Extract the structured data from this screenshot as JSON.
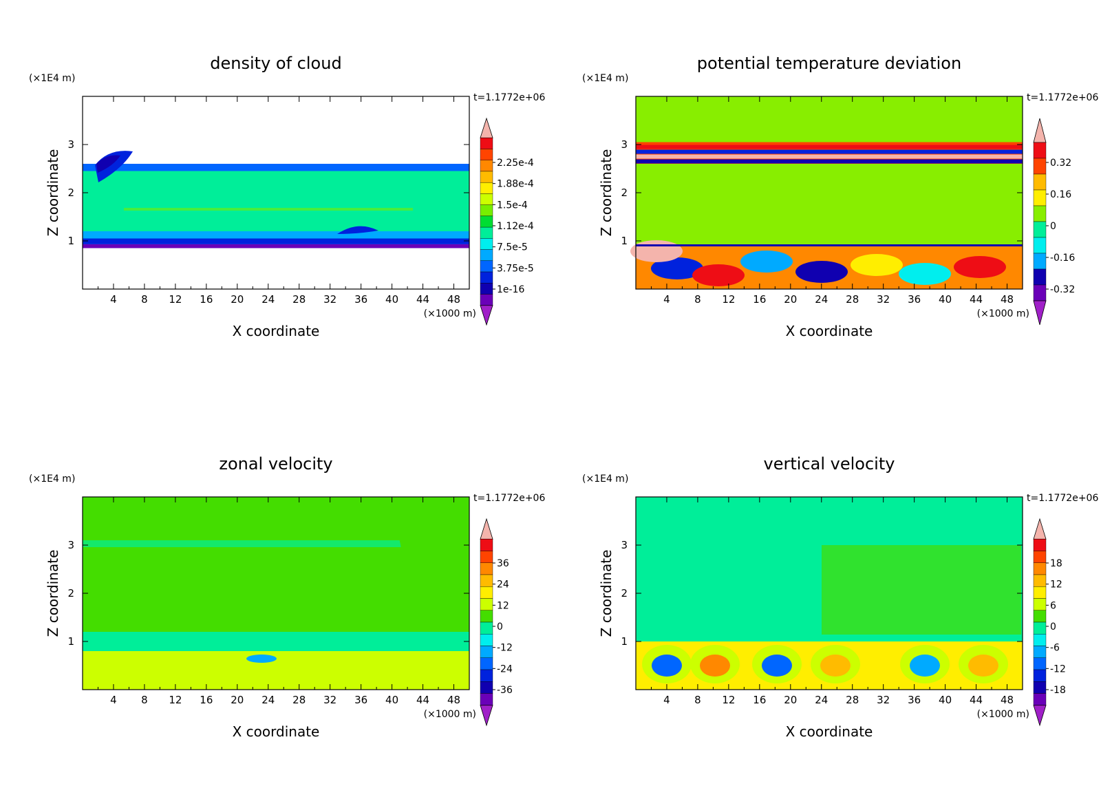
{
  "figure": {
    "time_label": "t=1.1772e+06",
    "y_unit": "(×1E4 m)",
    "x_unit": "(×1000 m)",
    "x_label": "X coordinate",
    "y_label": "Z coordinate",
    "x_ticks": [
      4,
      8,
      12,
      16,
      20,
      24,
      28,
      32,
      36,
      40,
      44,
      48
    ],
    "y_ticks": [
      1,
      2,
      3
    ]
  },
  "chart_data": [
    {
      "type": "heatmap",
      "title": "density of cloud",
      "xlabel": "X coordinate",
      "ylabel": "Z coordinate",
      "xunit": "(×1000 m)",
      "yunit": "(×1E4 m)",
      "xlim": [
        0,
        50
      ],
      "ylim": [
        0,
        4
      ],
      "annotation": "t=1.1772e+06",
      "colorbar": {
        "labels": [
          "2.25e-4",
          "1.88e-4",
          "1.5e-4",
          "1.12e-4",
          "7.5e-5",
          "3.75e-5",
          "1e-16"
        ],
        "colors": [
          "#f4b4ac",
          "#ee0d15",
          "#ff4400",
          "#ff8800",
          "#ffbb00",
          "#ffee00",
          "#ccff00",
          "#77ee00",
          "#00dd33",
          "#00ee99",
          "#00eeee",
          "#00aaff",
          "#0066ff",
          "#0022dd",
          "#1000b0",
          "#6a00b8",
          "#a020c8"
        ]
      },
      "fields": [
        {
          "band": [
            0.85,
            0.93
          ],
          "level": "1e-16",
          "color": "#6a00b8"
        },
        {
          "band": [
            0.93,
            1.05
          ],
          "level": "3.75e-5",
          "color": "#0022dd"
        },
        {
          "band": [
            1.05,
            1.2
          ],
          "level": "7.5e-5",
          "color": "#00aaff"
        },
        {
          "band": [
            1.2,
            2.45
          ],
          "level": "1.12e-4",
          "color": "#00ee99"
        },
        {
          "band": [
            2.45,
            2.6
          ],
          "level": "7.5e-5",
          "color": "#0066ff"
        }
      ]
    },
    {
      "type": "heatmap",
      "title": "potential temperature deviation",
      "xlabel": "X coordinate",
      "ylabel": "Z coordinate",
      "xunit": "(×1000 m)",
      "yunit": "(×1E4 m)",
      "xlim": [
        0,
        50
      ],
      "ylim": [
        0,
        4
      ],
      "annotation": "t=1.1772e+06",
      "colorbar": {
        "labels": [
          "0.32",
          "0.16",
          "0",
          "-0.16",
          "-0.32"
        ],
        "colors": [
          "#f4b4ac",
          "#ee0d15",
          "#ff4400",
          "#ffbb00",
          "#ffee00",
          "#88ee00",
          "#00ee99",
          "#00eeee",
          "#00aaff",
          "#1000b0",
          "#6a00b8",
          "#a020c8"
        ]
      },
      "fields": [
        {
          "band": [
            0.9,
            2.6
          ],
          "level": "0",
          "color": "#88ee00"
        },
        {
          "band": [
            2.6,
            3.05
          ],
          "level": "-0.32 … 0.32",
          "color": "#ff4400"
        },
        {
          "band": [
            3.05,
            4.0
          ],
          "level": "0",
          "color": "#88ee00"
        }
      ]
    },
    {
      "type": "heatmap",
      "title": "zonal velocity",
      "xlabel": "X coordinate",
      "ylabel": "Z coordinate",
      "xunit": "(×1000 m)",
      "yunit": "(×1E4 m)",
      "xlim": [
        0,
        50
      ],
      "ylim": [
        0,
        4
      ],
      "annotation": "t=1.1772e+06",
      "colorbar": {
        "labels": [
          "36",
          "24",
          "12",
          "0",
          "-12",
          "-24",
          "-36"
        ],
        "colors": [
          "#f4b4ac",
          "#ee0d15",
          "#ff4400",
          "#ff8800",
          "#ffbb00",
          "#ffee00",
          "#ccff00",
          "#44dd00",
          "#00ee99",
          "#00eeee",
          "#00aaff",
          "#0066ff",
          "#0022dd",
          "#1000b0",
          "#6a00b8",
          "#a020c8"
        ]
      },
      "fields": [
        {
          "band": [
            0.0,
            0.8
          ],
          "level": "0 … 12",
          "color": "#ccff00"
        },
        {
          "band": [
            0.8,
            4.0
          ],
          "level": "0",
          "color": "#44dd00"
        }
      ]
    },
    {
      "type": "heatmap",
      "title": "vertical velocity",
      "xlabel": "X coordinate",
      "ylabel": "Z coordinate",
      "xunit": "(×1000 m)",
      "yunit": "(×1E4 m)",
      "xlim": [
        0,
        50
      ],
      "ylim": [
        0,
        4
      ],
      "annotation": "t=1.1772e+06",
      "colorbar": {
        "labels": [
          "18",
          "12",
          "6",
          "0",
          "-6",
          "-12",
          "-18"
        ],
        "colors": [
          "#f4b4ac",
          "#ee0d15",
          "#ff4400",
          "#ff8800",
          "#ffbb00",
          "#ffee00",
          "#ccff00",
          "#44dd00",
          "#00ee99",
          "#00eeee",
          "#00aaff",
          "#0066ff",
          "#0022dd",
          "#1000b0",
          "#6a00b8",
          "#a020c8"
        ]
      },
      "fields": [
        {
          "band": [
            0.0,
            1.0
          ],
          "level": "-18 … 18",
          "color": "#ffee00"
        },
        {
          "band": [
            1.0,
            4.0
          ],
          "level": "0",
          "color": "#00ee99"
        }
      ]
    }
  ]
}
